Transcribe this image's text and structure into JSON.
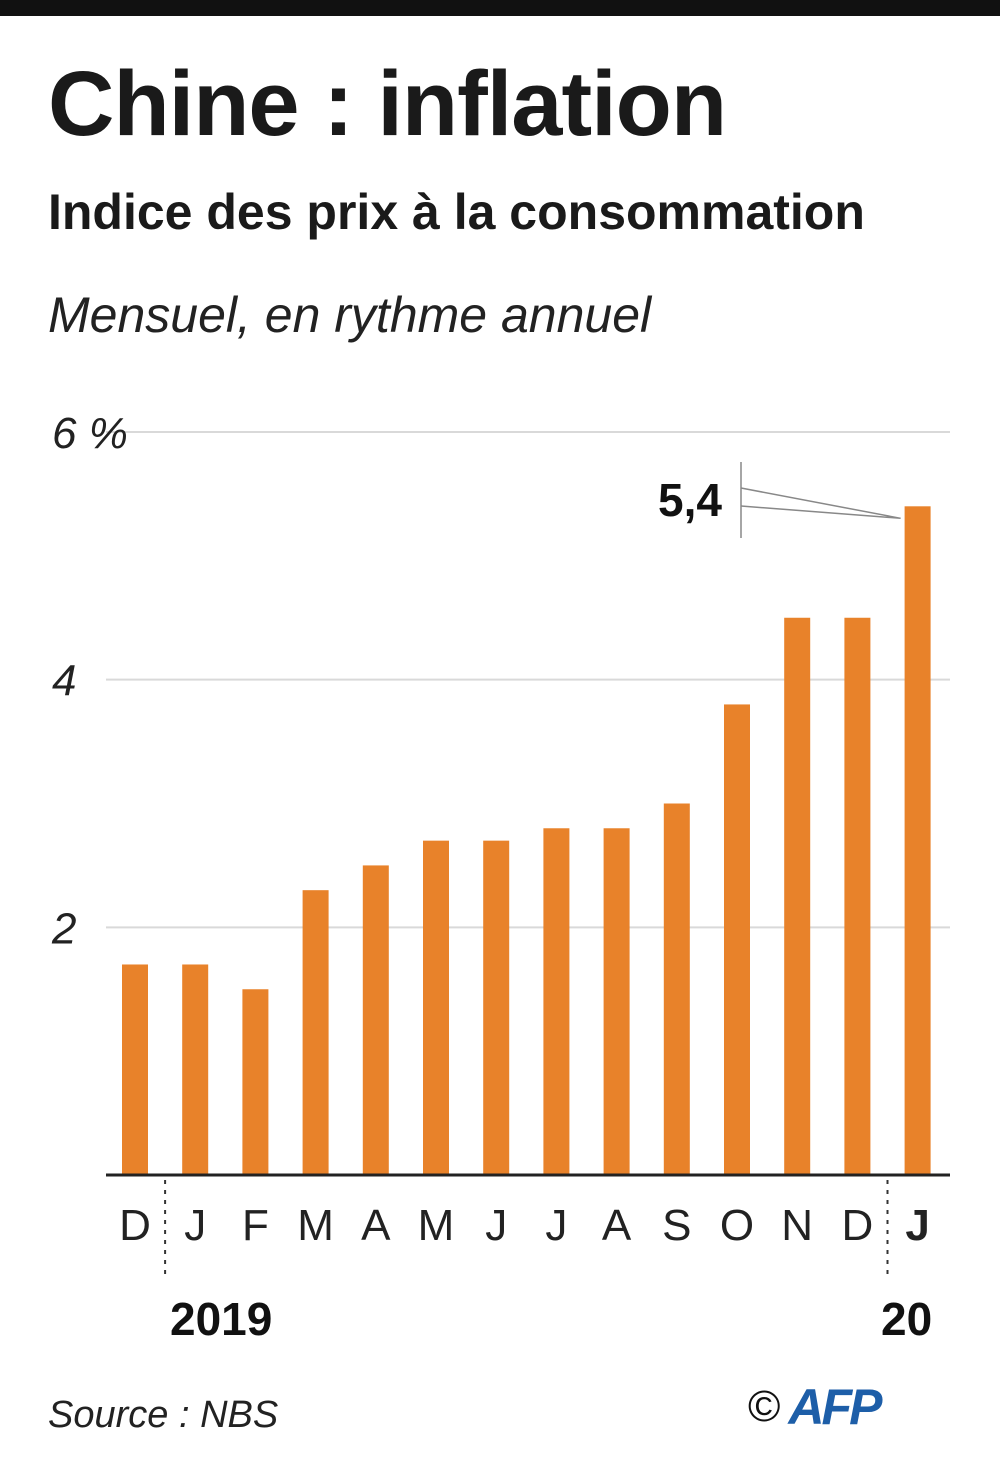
{
  "header": {
    "title": "Chine : inflation",
    "subtitle": "Indice des prix à la consommation",
    "note": "Mensuel, en rythme annuel"
  },
  "footer": {
    "source": "Source : NBS",
    "copyright": "©",
    "logo": "AFP"
  },
  "colors": {
    "bar": "#e8822a",
    "grid": "#d9d9d9",
    "axis": "#222222",
    "logo": "#1d5ea8"
  },
  "chart_data": {
    "type": "bar",
    "categories": [
      "D",
      "J",
      "F",
      "M",
      "A",
      "M",
      "J",
      "J",
      "A",
      "S",
      "O",
      "N",
      "D",
      "J"
    ],
    "values": [
      1.7,
      1.7,
      1.5,
      2.3,
      2.5,
      2.7,
      2.7,
      2.8,
      2.8,
      3.0,
      3.8,
      4.5,
      4.5,
      5.4
    ],
    "highlight_last_category": true,
    "y_ticks": [
      "2",
      "4",
      "6 %"
    ],
    "ylim": [
      0,
      6
    ],
    "year_labels": [
      "2019",
      "20"
    ],
    "annotation": "5,4",
    "grid": true
  }
}
